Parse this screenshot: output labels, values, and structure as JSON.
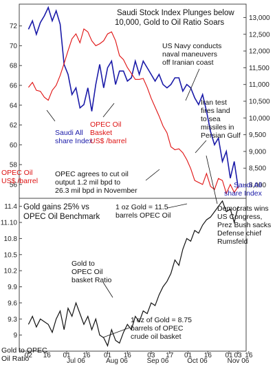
{
  "chart_data": [
    {
      "type": "line",
      "title": "Saudi Stock Index Plunges below 10,000, Gold to Oil Ratio Soars",
      "title_lines": [
        "Saudi Stock Index Plunges below",
        "10,000, Gold to Oil Ratio Soars"
      ],
      "left_axis": {
        "label": [
          "OPEC Oil",
          "US$ /barrel"
        ],
        "ticks": [
          56,
          58,
          60,
          62,
          64,
          66,
          68,
          70,
          72
        ],
        "range": [
          54.6,
          74.2
        ]
      },
      "right_axis": {
        "label": [
          "Saudi All",
          "share Index"
        ],
        "ticks": [
          "8,000",
          "8,500",
          "9,000",
          "9,500",
          "10,000",
          "10,500",
          "11,000",
          "11,500",
          "12,000",
          "12,500",
          "13,000"
        ],
        "range": [
          7600,
          13400
        ]
      },
      "series": [
        {
          "name": "Saudi All share Index",
          "axis": "right",
          "color": "#1a1aa8",
          "x": [
            "2006-06-02",
            "2006-06-05",
            "2006-06-08",
            "2006-06-11",
            "2006-06-14",
            "2006-06-17",
            "2006-06-20",
            "2006-06-23",
            "2006-06-26",
            "2006-06-29",
            "2006-07-02",
            "2006-07-05",
            "2006-07-08",
            "2006-07-11",
            "2006-07-14",
            "2006-07-17",
            "2006-07-20",
            "2006-07-23",
            "2006-07-26",
            "2006-07-29",
            "2006-08-01",
            "2006-08-04",
            "2006-08-07",
            "2006-08-10",
            "2006-08-13",
            "2006-08-16",
            "2006-08-19",
            "2006-08-22",
            "2006-08-25",
            "2006-08-28",
            "2006-08-31",
            "2006-09-03",
            "2006-09-06",
            "2006-09-09",
            "2006-09-12",
            "2006-09-15",
            "2006-09-18",
            "2006-09-21",
            "2006-09-24",
            "2006-09-27",
            "2006-09-30",
            "2006-10-03",
            "2006-10-06",
            "2006-10-09",
            "2006-10-12",
            "2006-10-15",
            "2006-10-18",
            "2006-10-21",
            "2006-10-24",
            "2006-10-27",
            "2006-10-30",
            "2006-11-02",
            "2006-11-05",
            "2006-11-08"
          ],
          "values": [
            12650,
            12900,
            12500,
            12850,
            13050,
            13300,
            12900,
            13200,
            12800,
            11600,
            11300,
            10700,
            10900,
            10300,
            10400,
            10900,
            10200,
            11000,
            11600,
            10900,
            11500,
            11700,
            11000,
            11400,
            11400,
            11100,
            11200,
            11700,
            11300,
            11700,
            11500,
            11300,
            11100,
            11300,
            11000,
            10900,
            11000,
            11200,
            11200,
            10800,
            11000,
            10900,
            10600,
            10400,
            10700,
            10200,
            9600,
            9200,
            9400,
            8700,
            9000,
            8200,
            8700,
            7900
          ]
        },
        {
          "name": "OPEC Oil Basket US$ /barrel",
          "axis": "left",
          "color": "#e01010",
          "x": [
            "2006-06-02",
            "2006-06-05",
            "2006-06-08",
            "2006-06-11",
            "2006-06-14",
            "2006-06-17",
            "2006-06-20",
            "2006-06-23",
            "2006-06-26",
            "2006-06-29",
            "2006-07-02",
            "2006-07-05",
            "2006-07-08",
            "2006-07-11",
            "2006-07-14",
            "2006-07-17",
            "2006-07-20",
            "2006-07-23",
            "2006-07-26",
            "2006-07-29",
            "2006-08-01",
            "2006-08-04",
            "2006-08-07",
            "2006-08-10",
            "2006-08-13",
            "2006-08-16",
            "2006-08-19",
            "2006-08-22",
            "2006-08-25",
            "2006-08-28",
            "2006-08-31",
            "2006-09-03",
            "2006-09-06",
            "2006-09-09",
            "2006-09-12",
            "2006-09-15",
            "2006-09-18",
            "2006-09-21",
            "2006-09-24",
            "2006-09-27",
            "2006-09-30",
            "2006-10-03",
            "2006-10-06",
            "2006-10-09",
            "2006-10-12",
            "2006-10-15",
            "2006-10-18",
            "2006-10-21",
            "2006-10-24",
            "2006-10-27",
            "2006-10-30",
            "2006-11-02",
            "2006-11-05",
            "2006-11-08"
          ],
          "values": [
            65.8,
            66.3,
            65.5,
            65.4,
            64.8,
            64.5,
            65.5,
            66.0,
            67.0,
            68.2,
            69.5,
            70.7,
            71.2,
            70.3,
            71.7,
            71.4,
            70.5,
            70.0,
            70.2,
            70.5,
            71.2,
            71.4,
            70.5,
            69.0,
            68.6,
            67.8,
            67.2,
            66.6,
            66.6,
            66.7,
            65.8,
            64.7,
            63.8,
            62.9,
            61.9,
            61.2,
            59.8,
            59.5,
            59.6,
            59.2,
            58.5,
            57.6,
            56.4,
            56.2,
            56.0,
            57.1,
            55.8,
            55.5,
            56.6,
            56.4,
            55.1,
            56.0,
            55.2,
            55.8
          ]
        }
      ],
      "x_ticks": [
        "02",
        "16",
        "01",
        "16",
        "01",
        "16",
        "03",
        "17",
        "01",
        "16",
        "01",
        "16",
        "03"
      ],
      "month_labels": [
        "Jul 06",
        "Aug 06",
        "Sep 06",
        "Oct 06",
        "Nov 06"
      ],
      "annotations": [
        {
          "lines": [
            "US Navy conducts",
            "naval maneuvers",
            "off Iranian coast"
          ]
        },
        {
          "lines": [
            "Iran test",
            "fires land",
            "to sea",
            "missiles in",
            "Persian Gulf"
          ]
        },
        {
          "lines": [
            "OPEC agrees to cut oil",
            "output 1.2 mil bpd to",
            "26.3 mil bpd in November"
          ]
        }
      ]
    },
    {
      "type": "line",
      "title": "Gold gains 25% vs OPEC Oil Benchmark",
      "title_lines": [
        "Gold gains 25% vs",
        "OPEC Oil Benchmark"
      ],
      "left_axis": {
        "label": [
          "Gold to OPEC",
          "Oil Ratio"
        ],
        "ticks": [
          9.0,
          9.3,
          9.6,
          9.9,
          10.2,
          10.5,
          10.8,
          11.1,
          11.4
        ],
        "tick_labels": [
          "9",
          "9.3",
          "9.6",
          "9.9",
          "10.2",
          "10.5",
          "10.8",
          "11.10",
          "11.4"
        ],
        "range": [
          8.7,
          11.55
        ]
      },
      "series": [
        {
          "name": "Gold to OPEC Oil basket Ratio",
          "color": "#111111",
          "x": [
            "2006-06-02",
            "2006-06-05",
            "2006-06-08",
            "2006-06-11",
            "2006-06-14",
            "2006-06-17",
            "2006-06-20",
            "2006-06-23",
            "2006-06-26",
            "2006-06-29",
            "2006-07-02",
            "2006-07-05",
            "2006-07-08",
            "2006-07-11",
            "2006-07-14",
            "2006-07-17",
            "2006-07-20",
            "2006-07-23",
            "2006-07-26",
            "2006-07-29",
            "2006-08-01",
            "2006-08-04",
            "2006-08-07",
            "2006-08-10",
            "2006-08-13",
            "2006-08-16",
            "2006-08-19",
            "2006-08-22",
            "2006-08-25",
            "2006-08-28",
            "2006-08-31",
            "2006-09-03",
            "2006-09-06",
            "2006-09-09",
            "2006-09-12",
            "2006-09-15",
            "2006-09-18",
            "2006-09-21",
            "2006-09-24",
            "2006-09-27",
            "2006-09-30",
            "2006-10-03",
            "2006-10-06",
            "2006-10-09",
            "2006-10-12",
            "2006-10-15",
            "2006-10-18",
            "2006-10-21",
            "2006-10-24",
            "2006-10-27",
            "2006-10-30",
            "2006-11-02",
            "2006-11-05",
            "2006-11-08"
          ],
          "values": [
            9.2,
            9.35,
            9.15,
            9.3,
            9.25,
            9.2,
            9.05,
            9.3,
            9.45,
            9.1,
            9.5,
            9.35,
            9.6,
            9.4,
            9.2,
            9.35,
            9.1,
            9.3,
            9.0,
            8.95,
            8.8,
            9.1,
            8.9,
            8.85,
            9.05,
            9.2,
            9.1,
            9.35,
            9.25,
            9.45,
            9.4,
            9.6,
            9.55,
            9.75,
            9.9,
            10.0,
            10.15,
            10.4,
            10.3,
            10.6,
            10.8,
            10.75,
            10.95,
            10.9,
            11.05,
            11.15,
            11.2,
            11.3,
            11.4,
            11.5,
            11.3,
            11.35,
            11.1,
            11.4
          ]
        }
      ],
      "annotations": [
        {
          "lines": [
            "1 oz Gold = 11.5",
            "barrels OPEC Oil"
          ]
        },
        {
          "lines": [
            "Gold to",
            "OPEC Oil",
            "basket Ratio"
          ]
        },
        {
          "lines": [
            "1 oz of Gold = 8.75",
            "barrels of OPEC",
            "crude oil basket"
          ]
        },
        {
          "lines": [
            "Democrats wins",
            "US Congress,",
            "Prez Bush sacks",
            "Defense chief",
            "Rumsfeld"
          ]
        }
      ]
    }
  ]
}
